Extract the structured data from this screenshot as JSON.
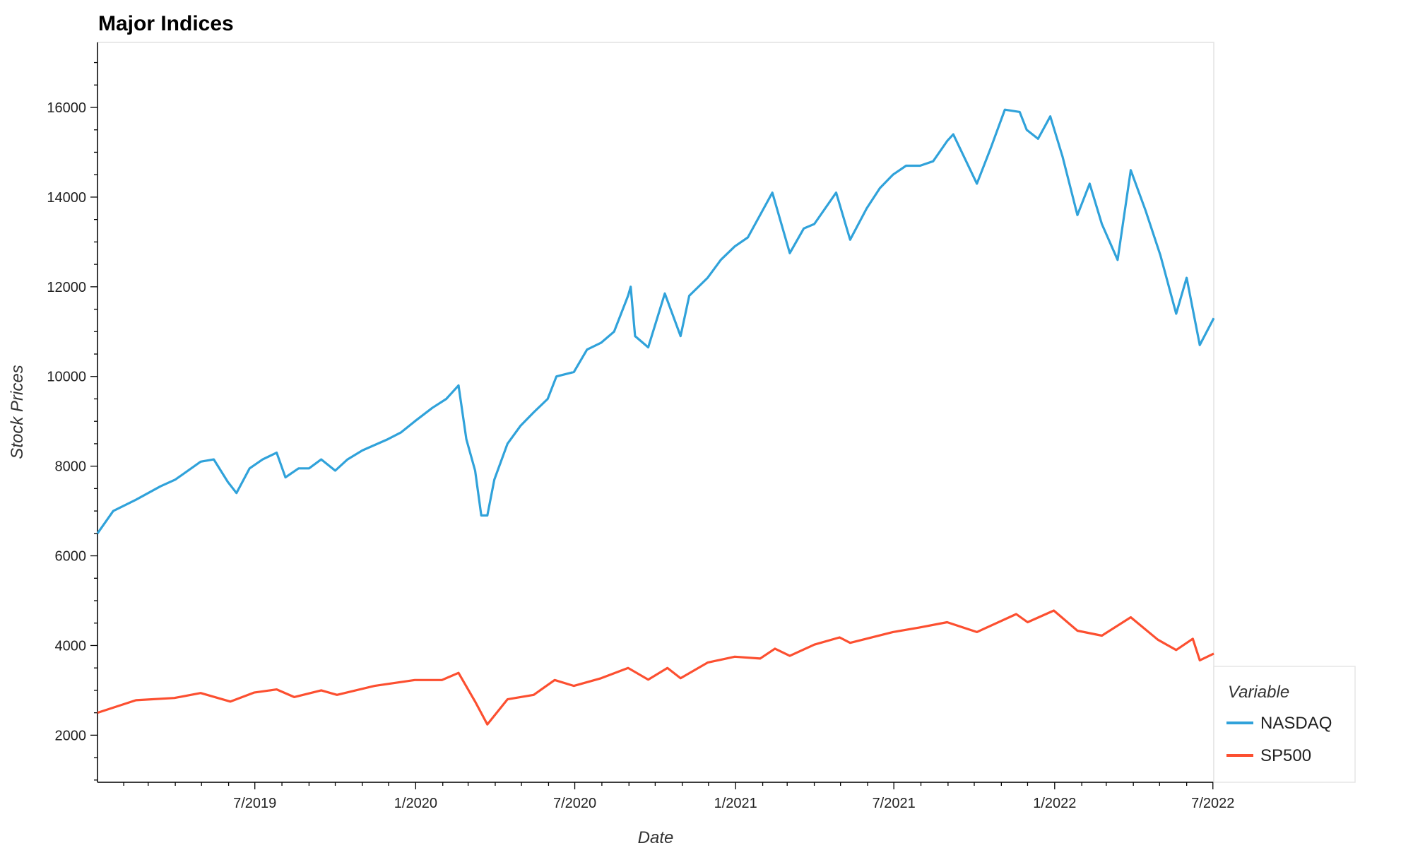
{
  "chart_data": {
    "type": "line",
    "title": "Major Indices",
    "xlabel": "Date",
    "ylabel": "Stock Prices",
    "xlim": [
      "2019-01-02",
      "2022-07-02"
    ],
    "ylim": [
      950,
      17450
    ],
    "x_ticks": [
      {
        "date": "2019-07-01",
        "label": "7/2019"
      },
      {
        "date": "2020-01-01",
        "label": "1/2020"
      },
      {
        "date": "2020-07-01",
        "label": "7/2020"
      },
      {
        "date": "2021-01-01",
        "label": "1/2021"
      },
      {
        "date": "2021-07-01",
        "label": "7/2021"
      },
      {
        "date": "2022-01-01",
        "label": "1/2022"
      },
      {
        "date": "2022-07-01",
        "label": "7/2022"
      }
    ],
    "y_ticks": [
      2000,
      4000,
      6000,
      8000,
      10000,
      12000,
      14000,
      16000
    ],
    "grid": false,
    "legend": {
      "title": "Variable",
      "position": "bottom-right outside"
    },
    "series": [
      {
        "name": "NASDAQ",
        "color": "#30a2da",
        "points": [
          [
            "2019-01-02",
            6500
          ],
          [
            "2019-01-20",
            7000
          ],
          [
            "2019-02-15",
            7250
          ],
          [
            "2019-03-15",
            7550
          ],
          [
            "2019-04-01",
            7700
          ],
          [
            "2019-04-30",
            8100
          ],
          [
            "2019-05-15",
            8150
          ],
          [
            "2019-05-31",
            7650
          ],
          [
            "2019-06-10",
            7400
          ],
          [
            "2019-06-25",
            7950
          ],
          [
            "2019-07-10",
            8150
          ],
          [
            "2019-07-26",
            8300
          ],
          [
            "2019-08-05",
            7750
          ],
          [
            "2019-08-20",
            7950
          ],
          [
            "2019-09-01",
            7950
          ],
          [
            "2019-09-15",
            8150
          ],
          [
            "2019-10-01",
            7900
          ],
          [
            "2019-10-15",
            8150
          ],
          [
            "2019-11-01",
            8350
          ],
          [
            "2019-11-30",
            8600
          ],
          [
            "2019-12-15",
            8750
          ],
          [
            "2019-12-31",
            9000
          ],
          [
            "2020-01-20",
            9300
          ],
          [
            "2020-02-05",
            9500
          ],
          [
            "2020-02-19",
            9800
          ],
          [
            "2020-02-28",
            8600
          ],
          [
            "2020-03-09",
            7900
          ],
          [
            "2020-03-16",
            6900
          ],
          [
            "2020-03-23",
            6900
          ],
          [
            "2020-03-31",
            7700
          ],
          [
            "2020-04-15",
            8500
          ],
          [
            "2020-04-30",
            8900
          ],
          [
            "2020-05-15",
            9200
          ],
          [
            "2020-05-31",
            9500
          ],
          [
            "2020-06-10",
            10000
          ],
          [
            "2020-06-30",
            10100
          ],
          [
            "2020-07-15",
            10600
          ],
          [
            "2020-07-31",
            10750
          ],
          [
            "2020-08-15",
            11000
          ],
          [
            "2020-08-31",
            11800
          ],
          [
            "2020-09-03",
            12000
          ],
          [
            "2020-09-08",
            10900
          ],
          [
            "2020-09-23",
            10650
          ],
          [
            "2020-10-12",
            11850
          ],
          [
            "2020-10-30",
            10900
          ],
          [
            "2020-11-09",
            11800
          ],
          [
            "2020-11-30",
            12200
          ],
          [
            "2020-12-15",
            12600
          ],
          [
            "2020-12-31",
            12900
          ],
          [
            "2021-01-15",
            13100
          ],
          [
            "2021-02-12",
            14100
          ],
          [
            "2021-03-04",
            12750
          ],
          [
            "2021-03-20",
            13300
          ],
          [
            "2021-04-01",
            13400
          ],
          [
            "2021-04-26",
            14100
          ],
          [
            "2021-05-12",
            13050
          ],
          [
            "2021-05-31",
            13750
          ],
          [
            "2021-06-15",
            14200
          ],
          [
            "2021-06-30",
            14500
          ],
          [
            "2021-07-15",
            14700
          ],
          [
            "2021-07-31",
            14700
          ],
          [
            "2021-08-15",
            14800
          ],
          [
            "2021-08-31",
            15250
          ],
          [
            "2021-09-07",
            15400
          ],
          [
            "2021-10-04",
            14300
          ],
          [
            "2021-10-20",
            15100
          ],
          [
            "2021-11-05",
            15950
          ],
          [
            "2021-11-22",
            15900
          ],
          [
            "2021-11-30",
            15500
          ],
          [
            "2021-12-13",
            15300
          ],
          [
            "2021-12-27",
            15800
          ],
          [
            "2022-01-10",
            14900
          ],
          [
            "2022-01-27",
            13600
          ],
          [
            "2022-02-10",
            14300
          ],
          [
            "2022-02-24",
            13400
          ],
          [
            "2022-03-14",
            12600
          ],
          [
            "2022-03-29",
            14600
          ],
          [
            "2022-04-15",
            13700
          ],
          [
            "2022-05-02",
            12700
          ],
          [
            "2022-05-20",
            11400
          ],
          [
            "2022-06-01",
            12200
          ],
          [
            "2022-06-16",
            10700
          ],
          [
            "2022-07-02",
            11300
          ]
        ]
      },
      {
        "name": "SP500",
        "color": "#fc4f30",
        "points": [
          [
            "2019-01-02",
            2500
          ],
          [
            "2019-02-15",
            2780
          ],
          [
            "2019-03-31",
            2830
          ],
          [
            "2019-04-30",
            2940
          ],
          [
            "2019-06-03",
            2750
          ],
          [
            "2019-06-30",
            2950
          ],
          [
            "2019-07-26",
            3020
          ],
          [
            "2019-08-15",
            2850
          ],
          [
            "2019-09-15",
            3000
          ],
          [
            "2019-10-03",
            2900
          ],
          [
            "2019-11-15",
            3100
          ],
          [
            "2019-12-31",
            3230
          ],
          [
            "2020-01-31",
            3230
          ],
          [
            "2020-02-19",
            3390
          ],
          [
            "2020-03-09",
            2750
          ],
          [
            "2020-03-23",
            2240
          ],
          [
            "2020-04-15",
            2800
          ],
          [
            "2020-05-15",
            2900
          ],
          [
            "2020-06-08",
            3230
          ],
          [
            "2020-06-30",
            3100
          ],
          [
            "2020-07-31",
            3270
          ],
          [
            "2020-08-31",
            3500
          ],
          [
            "2020-09-23",
            3240
          ],
          [
            "2020-10-15",
            3500
          ],
          [
            "2020-10-30",
            3270
          ],
          [
            "2020-11-30",
            3620
          ],
          [
            "2020-12-31",
            3750
          ],
          [
            "2021-01-29",
            3710
          ],
          [
            "2021-02-15",
            3930
          ],
          [
            "2021-03-04",
            3770
          ],
          [
            "2021-04-01",
            4020
          ],
          [
            "2021-04-30",
            4180
          ],
          [
            "2021-05-12",
            4060
          ],
          [
            "2021-06-30",
            4300
          ],
          [
            "2021-07-30",
            4400
          ],
          [
            "2021-08-31",
            4520
          ],
          [
            "2021-10-04",
            4300
          ],
          [
            "2021-11-18",
            4700
          ],
          [
            "2021-12-01",
            4520
          ],
          [
            "2021-12-31",
            4780
          ],
          [
            "2022-01-27",
            4330
          ],
          [
            "2022-02-24",
            4220
          ],
          [
            "2022-03-29",
            4630
          ],
          [
            "2022-04-29",
            4130
          ],
          [
            "2022-05-20",
            3900
          ],
          [
            "2022-06-08",
            4150
          ],
          [
            "2022-06-16",
            3670
          ],
          [
            "2022-07-02",
            3820
          ]
        ]
      }
    ]
  }
}
